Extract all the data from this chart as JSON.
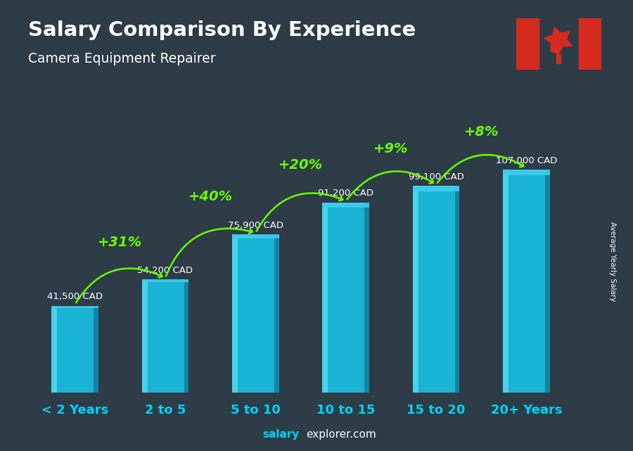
{
  "title": "Salary Comparison By Experience",
  "subtitle": "Camera Equipment Repairer",
  "categories": [
    "< 2 Years",
    "2 to 5",
    "5 to 10",
    "10 to 15",
    "15 to 20",
    "20+ Years"
  ],
  "values": [
    41500,
    54200,
    75900,
    91200,
    99100,
    107000
  ],
  "value_labels": [
    "41,500 CAD",
    "54,200 CAD",
    "75,900 CAD",
    "91,200 CAD",
    "99,100 CAD",
    "107,000 CAD"
  ],
  "pct_labels": [
    "+31%",
    "+40%",
    "+20%",
    "+9%",
    "+8%"
  ],
  "bar_color": "#1ab3d4",
  "bar_left_highlight": "#5de0f5",
  "bar_right_shadow": "#0d7a96",
  "bar_top_color": "#40ccee",
  "bg_color": "#2d3b47",
  "title_color": "#ffffff",
  "subtitle_color": "#ffffff",
  "value_label_color": "#ffffff",
  "pct_color": "#66ff00",
  "arrow_color": "#66ff00",
  "xlabel_color": "#00d4f5",
  "watermark_bold": "salary",
  "watermark_rest": "explorer.com",
  "ylabel_text": "Average Yearly Salary",
  "ylim_max": 130000,
  "arc_params": [
    [
      0,
      1,
      "+31%"
    ],
    [
      1,
      2,
      "+40%"
    ],
    [
      2,
      3,
      "+20%"
    ],
    [
      3,
      4,
      "+9%"
    ],
    [
      4,
      5,
      "+8%"
    ]
  ]
}
